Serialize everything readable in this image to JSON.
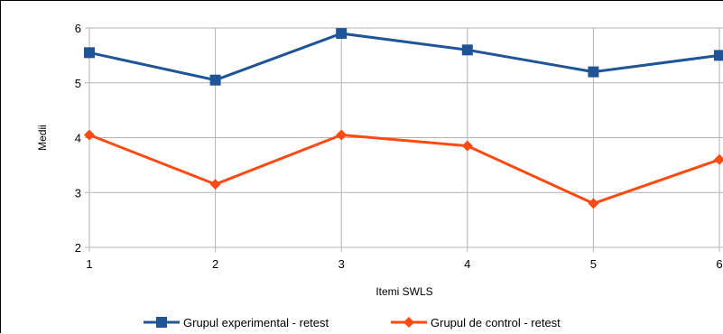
{
  "chart_data": {
    "type": "line",
    "title": "",
    "xlabel": "Itemi SWLS",
    "ylabel": "Medii",
    "x": [
      1,
      2,
      3,
      4,
      5,
      6
    ],
    "x_tick_labels": [
      "1",
      "2",
      "3",
      "4",
      "5",
      "6"
    ],
    "y_ticks": [
      2,
      3,
      4,
      5,
      6
    ],
    "y_tick_labels": [
      "2",
      "3",
      "4",
      "5",
      "6"
    ],
    "xlim": [
      1,
      6
    ],
    "ylim": [
      2,
      6
    ],
    "grid": true,
    "legend_position": "bottom",
    "series": [
      {
        "name": "Grupul experimental - retest",
        "color": "#1f5597",
        "marker": "square",
        "values": [
          5.55,
          5.05,
          5.9,
          5.6,
          5.2,
          5.5
        ]
      },
      {
        "name": "Grupul de control - retest",
        "color": "#ff4a12",
        "marker": "diamond",
        "values": [
          4.05,
          3.15,
          4.05,
          3.85,
          2.8,
          3.6
        ]
      }
    ]
  }
}
